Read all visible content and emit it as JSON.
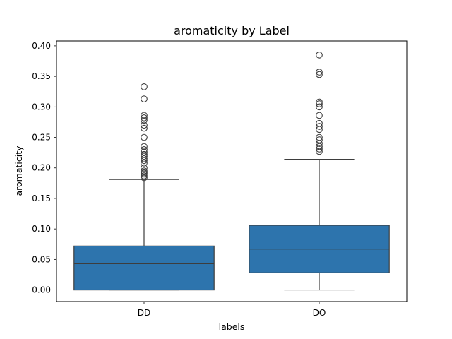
{
  "chart_data": {
    "type": "box",
    "title": "aromaticity by Label",
    "xlabel": "labels",
    "ylabel": "aromaticity",
    "categories": [
      "DD",
      "DO"
    ],
    "ylim": [
      -0.019,
      0.408
    ],
    "yticks": [
      "0.00",
      "0.05",
      "0.10",
      "0.15",
      "0.20",
      "0.25",
      "0.30",
      "0.35",
      "0.40"
    ],
    "ytick_values": [
      0.0,
      0.05,
      0.1,
      0.15,
      0.2,
      0.25,
      0.3,
      0.35,
      0.4
    ],
    "grid": false,
    "box_color": "#2d74ad",
    "line_color": "#3d3d3d",
    "boxes": [
      {
        "category": "DD",
        "whisker_low": 0.0,
        "q1": 0.0,
        "median": 0.043,
        "q3": 0.072,
        "whisker_high": 0.181,
        "outliers": [
          0.184,
          0.187,
          0.19,
          0.192,
          0.195,
          0.2,
          0.208,
          0.212,
          0.215,
          0.219,
          0.222,
          0.226,
          0.23,
          0.235,
          0.25,
          0.265,
          0.27,
          0.278,
          0.282,
          0.286,
          0.313,
          0.333
        ]
      },
      {
        "category": "DO",
        "whisker_low": 0.0,
        "q1": 0.028,
        "median": 0.067,
        "q3": 0.106,
        "whisker_high": 0.214,
        "outliers": [
          0.227,
          0.231,
          0.235,
          0.24,
          0.246,
          0.25,
          0.263,
          0.268,
          0.273,
          0.286,
          0.3,
          0.305,
          0.308,
          0.353,
          0.357,
          0.385
        ]
      }
    ]
  }
}
